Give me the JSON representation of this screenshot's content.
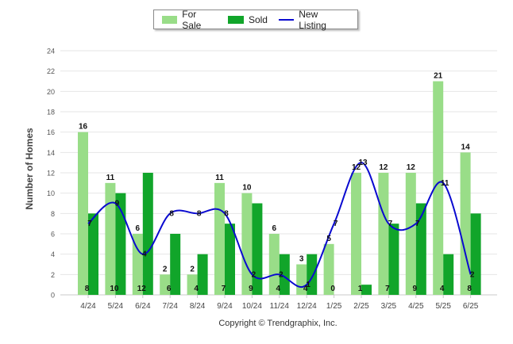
{
  "chart_data": {
    "type": "bar",
    "categories": [
      "4/24",
      "5/24",
      "6/24",
      "7/24",
      "8/24",
      "9/24",
      "10/24",
      "11/24",
      "12/24",
      "1/25",
      "2/25",
      "3/25",
      "4/25",
      "5/25",
      "6/25"
    ],
    "series": [
      {
        "name": "For Sale",
        "type": "bar",
        "color": "#99dd88",
        "values": [
          16,
          11,
          6,
          2,
          2,
          11,
          10,
          6,
          3,
          5,
          12,
          12,
          12,
          21,
          14
        ]
      },
      {
        "name": "Sold",
        "type": "bar",
        "color": "#11a52a",
        "values": [
          8,
          10,
          12,
          6,
          4,
          7,
          9,
          4,
          4,
          0,
          1,
          7,
          9,
          4,
          8
        ]
      },
      {
        "name": "New Listing",
        "type": "line",
        "color": "#0a0ad0",
        "values": [
          7,
          9,
          4,
          8,
          8,
          8,
          2,
          2,
          1,
          7,
          13,
          7,
          7,
          11,
          2
        ]
      }
    ],
    "ylabel": "Number of Homes",
    "yticks": [
      0,
      2,
      4,
      6,
      8,
      10,
      12,
      14,
      16,
      18,
      20,
      22,
      24
    ],
    "ylim": [
      0,
      24
    ]
  },
  "legend": {
    "for_sale": "For Sale",
    "sold": "Sold",
    "new_listing": "New Listing"
  },
  "footer": {
    "copyright": "Copyright © Trendgraphix, Inc."
  }
}
